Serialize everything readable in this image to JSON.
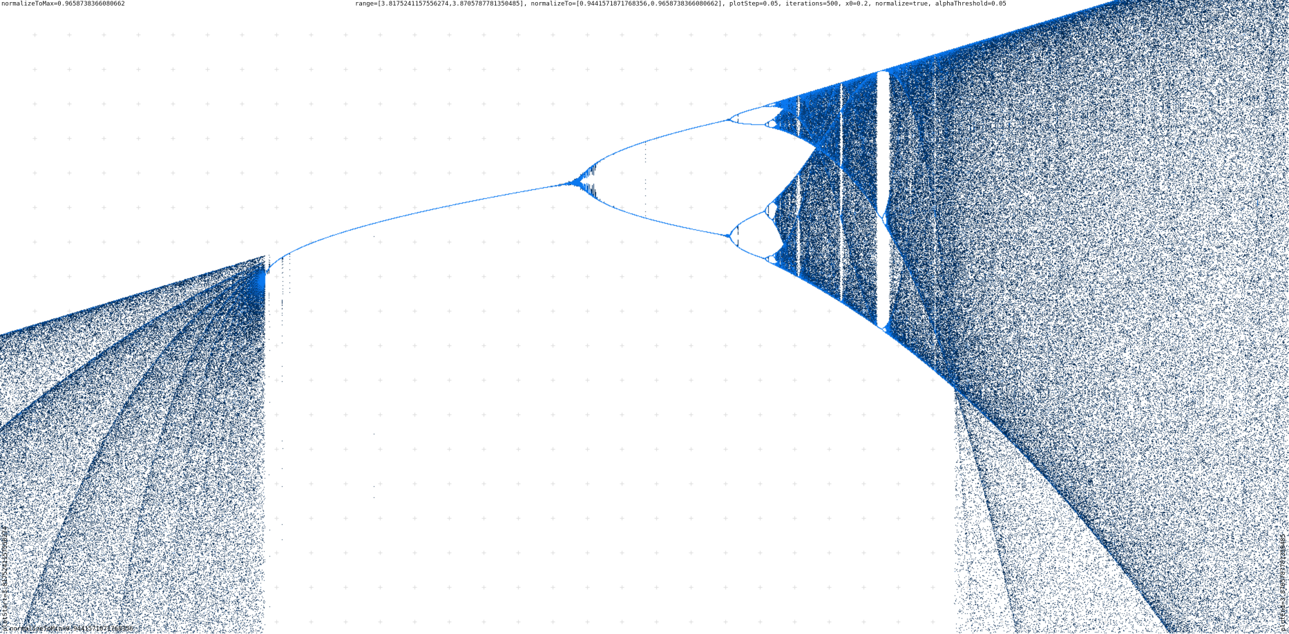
{
  "labels": {
    "normalize_max": "normalizeToMax=0.9658738366080662",
    "params": "range=[3.8175241157556274,3.8705787781350485], normalizeTo=[0.9441571871768356,0.9658738366080662], plotStep=0.05, iterations=500, x0=0.2, normalize=true, alphaThreshold=0.05",
    "normalize_min": "normalizeToMin=0.9441571871768356",
    "plot_start": "plotStart=3.8175241157556274",
    "plot_end": "plotEnd=3.8705787781350485"
  },
  "chart_data": {
    "type": "scatter",
    "title": "",
    "xlabel": "",
    "ylabel": "",
    "xlim": [
      3.8175241157556274,
      3.8705787781350485
    ],
    "ylim": [
      0.9441571871768356,
      0.9658738366080662
    ],
    "plot_step": 0.05,
    "iterations": 500,
    "x0": 0.2,
    "normalize": true,
    "alpha_threshold": 0.05,
    "grid": true,
    "grid_marker": "plus",
    "point_color": "#0a78f0",
    "grid_color": "#dddddd"
  }
}
